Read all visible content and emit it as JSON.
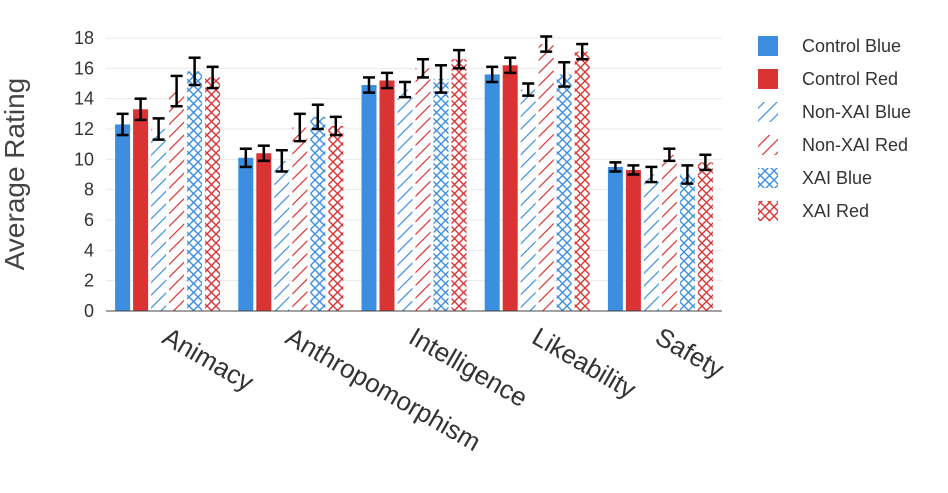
{
  "chart_data": {
    "type": "bar",
    "title": "",
    "xlabel": "",
    "ylabel": "Average Rating",
    "ylim": [
      0,
      18
    ],
    "y_ticks": [
      0,
      2,
      4,
      6,
      8,
      10,
      12,
      14,
      16,
      18
    ],
    "grid": true,
    "legend_position": "right",
    "categories": [
      "Animacy",
      "Anthropomorphism",
      "Intelligence",
      "Likeability",
      "Safety"
    ],
    "series": [
      {
        "name": "Control Blue",
        "color": "#3b8ee0",
        "pattern": "solid",
        "values": [
          12.3,
          10.1,
          14.9,
          15.6,
          9.5
        ],
        "errors": [
          0.7,
          0.6,
          0.5,
          0.5,
          0.3
        ]
      },
      {
        "name": "Control Red",
        "color": "#d93333",
        "pattern": "solid",
        "values": [
          13.3,
          10.4,
          15.2,
          16.2,
          9.3
        ],
        "errors": [
          0.7,
          0.5,
          0.5,
          0.5,
          0.3
        ]
      },
      {
        "name": "Non-XAI Blue",
        "color": "#3b8ee0",
        "pattern": "diagonal",
        "values": [
          12.0,
          9.9,
          14.6,
          14.6,
          9.0
        ],
        "errors": [
          0.7,
          0.7,
          0.5,
          0.4,
          0.5
        ]
      },
      {
        "name": "Non-XAI Red",
        "color": "#d93333",
        "pattern": "diagonal",
        "values": [
          14.5,
          12.1,
          16.0,
          17.6,
          10.3
        ],
        "errors": [
          1.0,
          0.9,
          0.6,
          0.5,
          0.4
        ]
      },
      {
        "name": "XAI Blue",
        "color": "#3b8ee0",
        "pattern": "cross",
        "values": [
          15.8,
          12.8,
          15.3,
          15.6,
          9.0
        ],
        "errors": [
          0.9,
          0.8,
          0.9,
          0.8,
          0.6
        ]
      },
      {
        "name": "XAI Red",
        "color": "#d93333",
        "pattern": "cross",
        "values": [
          15.4,
          12.2,
          16.6,
          17.1,
          9.8
        ],
        "errors": [
          0.7,
          0.6,
          0.6,
          0.5,
          0.5
        ]
      }
    ]
  }
}
